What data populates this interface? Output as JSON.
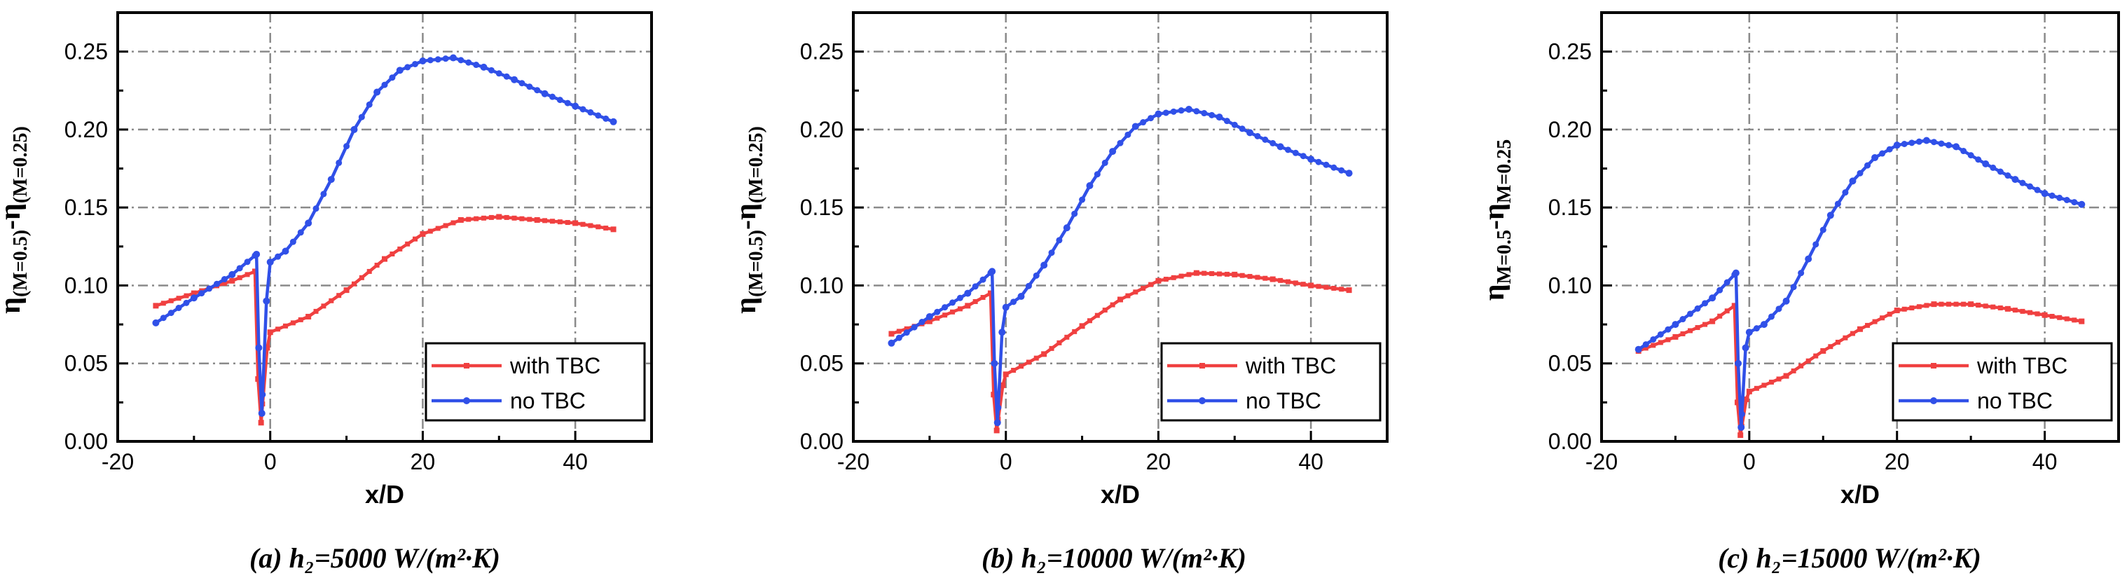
{
  "chart_data": [
    {
      "type": "line",
      "panel": "a",
      "caption": "(a)  h₂=5000 W/(m²·K)",
      "ylabel": {
        "symbol": "η",
        "sub1": "(M=0.5)",
        "mid": "-η",
        "sub2": "(M=0.25)"
      },
      "xlabel": "x/D",
      "xlim": [
        -20,
        50
      ],
      "ylim": [
        0.0,
        0.275
      ],
      "xticks": [
        "-20",
        "0",
        "20",
        "40"
      ],
      "yticks": [
        "0.00",
        "0.05",
        "0.10",
        "0.15",
        "0.20",
        "0.25"
      ],
      "legend_position": "lower-right",
      "series": [
        {
          "name": "with TBC",
          "color": "#f04040",
          "x": [
            -15,
            -10,
            -5,
            -2,
            -1.6,
            -1.2,
            -0.4,
            0,
            5,
            10,
            15,
            20,
            25,
            30,
            35,
            40,
            45
          ],
          "y": [
            0.087,
            0.095,
            0.103,
            0.109,
            0.04,
            0.012,
            0.06,
            0.07,
            0.08,
            0.097,
            0.117,
            0.133,
            0.142,
            0.144,
            0.142,
            0.14,
            0.136
          ]
        },
        {
          "name": "no TBC",
          "color": "#3050e8",
          "x": [
            -15,
            -10,
            -5,
            -1.8,
            -1.5,
            -1.1,
            -0.5,
            0,
            2,
            5,
            8,
            11,
            14,
            17,
            20,
            24,
            28,
            32,
            36,
            40,
            45
          ],
          "y": [
            0.076,
            0.092,
            0.107,
            0.12,
            0.06,
            0.018,
            0.09,
            0.115,
            0.122,
            0.14,
            0.168,
            0.2,
            0.224,
            0.238,
            0.244,
            0.246,
            0.24,
            0.232,
            0.223,
            0.215,
            0.205
          ]
        }
      ]
    },
    {
      "type": "line",
      "panel": "b",
      "caption": "(b)  h₂=10000 W/(m²·K)",
      "ylabel": {
        "symbol": "η",
        "sub1": "(M=0.5)",
        "mid": "-η",
        "sub2": "(M=0.25)"
      },
      "xlabel": "x/D",
      "xlim": [
        -20,
        50
      ],
      "ylim": [
        0.0,
        0.275
      ],
      "xticks": [
        "-20",
        "0",
        "20",
        "40"
      ],
      "yticks": [
        "0.00",
        "0.05",
        "0.10",
        "0.15",
        "0.20",
        "0.25"
      ],
      "legend_position": "lower-right",
      "series": [
        {
          "name": "with TBC",
          "color": "#f04040",
          "x": [
            -15,
            -10,
            -5,
            -2,
            -1.6,
            -1.2,
            -0.4,
            0,
            5,
            10,
            15,
            20,
            25,
            30,
            35,
            40,
            45
          ],
          "y": [
            0.069,
            0.077,
            0.087,
            0.095,
            0.03,
            0.007,
            0.036,
            0.043,
            0.056,
            0.074,
            0.091,
            0.103,
            0.108,
            0.107,
            0.104,
            0.1,
            0.097
          ]
        },
        {
          "name": "no TBC",
          "color": "#3050e8",
          "x": [
            -15,
            -10,
            -5,
            -1.8,
            -1.5,
            -1.1,
            -0.5,
            0,
            2,
            5,
            8,
            11,
            14,
            17,
            20,
            24,
            28,
            32,
            36,
            40,
            45
          ],
          "y": [
            0.063,
            0.08,
            0.095,
            0.109,
            0.05,
            0.012,
            0.07,
            0.086,
            0.093,
            0.113,
            0.137,
            0.164,
            0.186,
            0.202,
            0.21,
            0.213,
            0.208,
            0.198,
            0.189,
            0.181,
            0.172
          ]
        }
      ]
    },
    {
      "type": "line",
      "panel": "c",
      "caption": "(c)  h₂=15000 W/(m²·K)",
      "ylabel": {
        "symbol": "η",
        "sub1": "M=0.5",
        "mid": "-η",
        "sub2": "M=0.25"
      },
      "xlabel": "x/D",
      "xlim": [
        -20,
        50
      ],
      "ylim": [
        0.0,
        0.275
      ],
      "xticks": [
        "-20",
        "0",
        "20",
        "40"
      ],
      "yticks": [
        "0.00",
        "0.05",
        "0.10",
        "0.15",
        "0.20",
        "0.25"
      ],
      "legend_position": "lower-right",
      "series": [
        {
          "name": "with TBC",
          "color": "#f04040",
          "x": [
            -15,
            -10,
            -5,
            -2,
            -1.6,
            -1.2,
            -0.4,
            0,
            5,
            10,
            15,
            20,
            25,
            30,
            35,
            40,
            45
          ],
          "y": [
            0.058,
            0.067,
            0.077,
            0.087,
            0.025,
            0.004,
            0.027,
            0.032,
            0.042,
            0.058,
            0.072,
            0.084,
            0.088,
            0.088,
            0.085,
            0.081,
            0.077
          ]
        },
        {
          "name": "no TBC",
          "color": "#3050e8",
          "x": [
            -15,
            -10,
            -5,
            -1.8,
            -1.5,
            -1.1,
            -0.5,
            0,
            2,
            5,
            8,
            11,
            14,
            17,
            20,
            24,
            28,
            32,
            36,
            40,
            45
          ],
          "y": [
            0.059,
            0.075,
            0.092,
            0.108,
            0.05,
            0.009,
            0.06,
            0.07,
            0.075,
            0.09,
            0.117,
            0.145,
            0.167,
            0.182,
            0.19,
            0.193,
            0.189,
            0.178,
            0.168,
            0.159,
            0.152
          ]
        }
      ]
    }
  ]
}
